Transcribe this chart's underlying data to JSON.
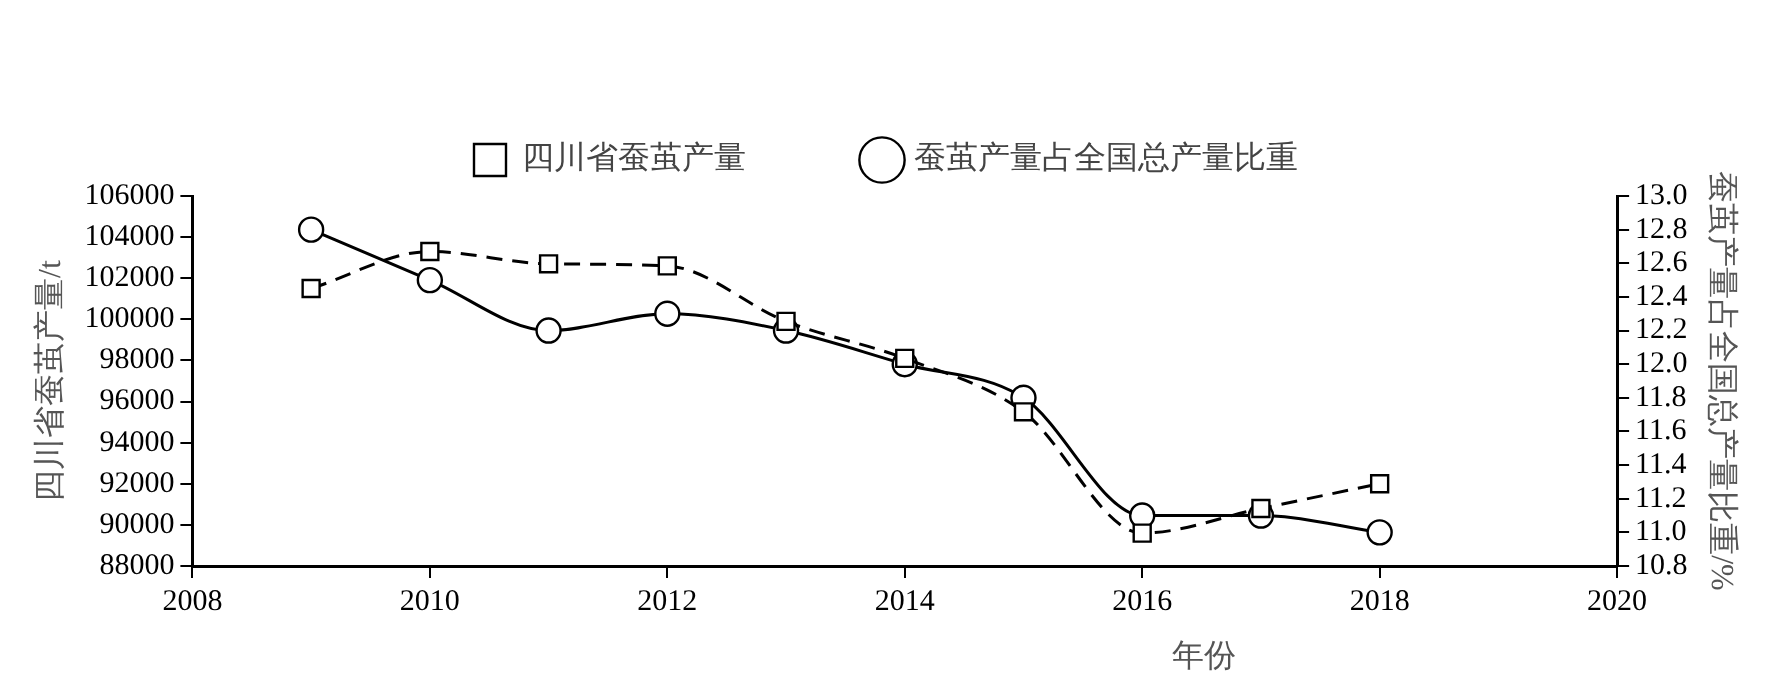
{
  "chart_data": {
    "type": "line",
    "xlabel": "年份",
    "ylabel": "四川省蚕茧产量/t",
    "y2label": "蚕茧产量占全国总产量比重/%",
    "x": [
      2009,
      2010,
      2011,
      2012,
      2013,
      2014,
      2015,
      2016,
      2017,
      2018
    ],
    "series": [
      {
        "name": "四川省蚕茧产量",
        "color": "#000000",
        "values": [
          101500,
          103300,
          102700,
          102600,
          99900,
          98100,
          95500,
          89600,
          90800,
          92000
        ],
        "marker": "square",
        "line_style": "dashed"
      },
      {
        "name": "蚕茧产量占全国总产量比重",
        "color": "#000000",
        "values": [
          12.8,
          12.5,
          12.2,
          12.3,
          12.2,
          12.0,
          11.8,
          11.1,
          11.1,
          11.0
        ],
        "marker": "circle",
        "line_style": "solid",
        "axis": "y2"
      }
    ],
    "xlim": [
      2008,
      2020
    ],
    "xticks": [
      2008,
      2010,
      2012,
      2014,
      2016,
      2018,
      2020
    ],
    "ylim": [
      88000,
      106000
    ],
    "yticks": [
      88000,
      90000,
      92000,
      94000,
      96000,
      98000,
      100000,
      102000,
      104000,
      106000
    ],
    "y2lim": [
      10.8,
      13.0
    ],
    "y2ticks": [
      {
        "value": 10.8,
        "label": "10.8"
      },
      {
        "value": 11,
        "label": "11.0"
      },
      {
        "value": 11.2,
        "label": "11.2"
      },
      {
        "value": 11.4,
        "label": "11.4"
      },
      {
        "value": 11.6,
        "label": "11.6"
      },
      {
        "value": 11.8,
        "label": "11.8"
      },
      {
        "value": 12,
        "label": "12.0"
      },
      {
        "value": 12.2,
        "label": "12.2"
      },
      {
        "value": 12.4,
        "label": "12.4"
      },
      {
        "value": 12.6,
        "label": "12.6"
      },
      {
        "value": 12.8,
        "label": "12.8"
      },
      {
        "value": 13,
        "label": "13.0"
      }
    ],
    "grid": false,
    "legend": "top"
  }
}
